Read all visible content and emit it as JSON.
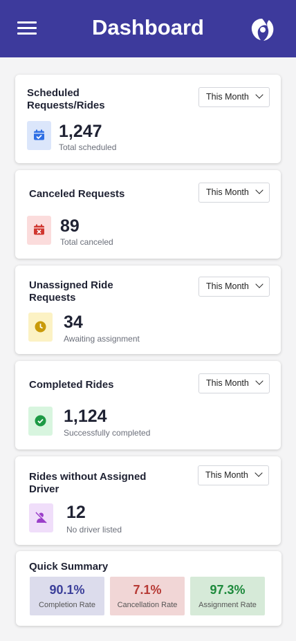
{
  "header": {
    "title": "Dashboard",
    "menu_icon": "hamburger-menu-icon",
    "logo_icon": "dolphin-logo-icon"
  },
  "cards": [
    {
      "title": "Scheduled Requests/Rides",
      "period": "This Month",
      "value": "1,247",
      "caption": "Total scheduled",
      "icon": "calendar-check-icon",
      "accent": "#2f6fe4",
      "icon_bg": "#dbe6fb"
    },
    {
      "title": "Canceled Requests",
      "period": "This Month",
      "value": "89",
      "caption": "Total canceled",
      "icon": "calendar-x-icon",
      "accent": "#d0362f",
      "icon_bg": "#fbdcdc"
    },
    {
      "title": "Unassigned Ride Requests",
      "period": "This Month",
      "value": "34",
      "caption": "Awaiting assignment",
      "icon": "clock-icon",
      "accent": "#c99a0a",
      "icon_bg": "#fcf2c4"
    },
    {
      "title": "Completed Rides",
      "period": "This Month",
      "value": "1,124",
      "caption": "Successfully completed",
      "icon": "check-circle-icon",
      "accent": "#1d9a45",
      "icon_bg": "#d8f5df"
    },
    {
      "title": "Rides without Assigned Driver",
      "period": "This Month",
      "value": "12",
      "caption": "No driver listed",
      "icon": "user-off-icon",
      "accent": "#9b3fc9",
      "icon_bg": "#f0defa"
    }
  ],
  "summary": {
    "title": "Quick Summary",
    "stats": [
      {
        "value": "90.1%",
        "label": "Completion Rate",
        "color": "#3b3f9a",
        "bg": "#dcdcec"
      },
      {
        "value": "7.1%",
        "label": "Cancellation Rate",
        "color": "#b73a35",
        "bg": "#f1d6d6"
      },
      {
        "value": "97.3%",
        "label": "Assignment Rate",
        "color": "#1d8a3c",
        "bg": "#d6ead8"
      }
    ]
  }
}
